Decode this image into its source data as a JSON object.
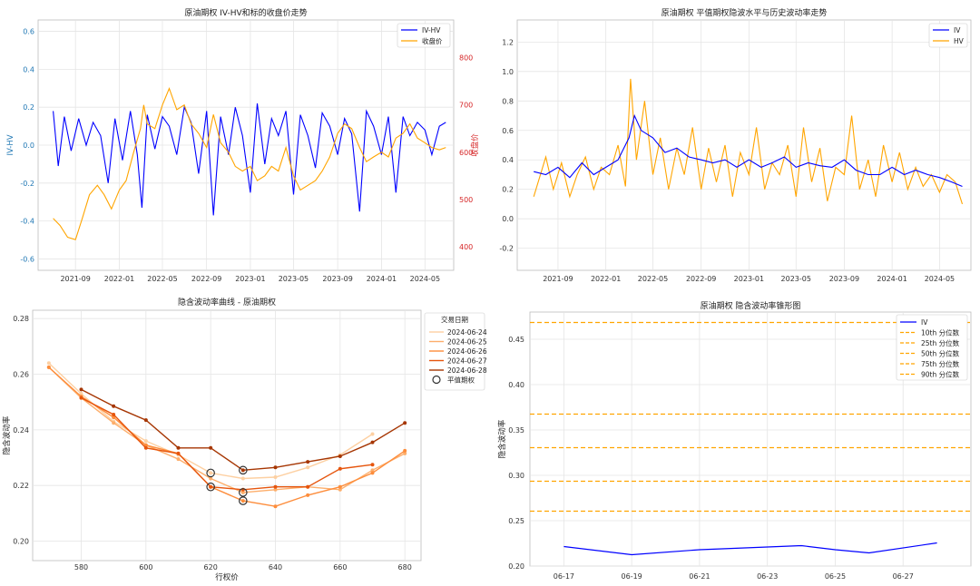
{
  "chart_data": [
    {
      "id": "iv_hv_close",
      "type": "line",
      "title": "原油期权 IV-HV和标的收盘价走势",
      "ylabel": "IV-HV",
      "y2label": "收盘价",
      "ylim": [
        -0.66,
        0.66
      ],
      "y2lim": [
        350,
        880
      ],
      "xlim": [
        "2021-05-20",
        "2024-07-20"
      ],
      "yticks": [
        "-0.6",
        "-0.4",
        "-0.2",
        "0.0",
        "0.2",
        "0.4",
        "0.6"
      ],
      "y2ticks": [
        "400",
        "500",
        "600",
        "700",
        "800"
      ],
      "xticks": [
        "2021-09",
        "2022-01",
        "2022-05",
        "2022-09",
        "2023-01",
        "2023-05",
        "2023-09",
        "2024-01",
        "2024-05"
      ],
      "grid": true,
      "legend_position": "top-right",
      "series": [
        {
          "name": "IV-HV",
          "axis": "left",
          "color": "#0000ff",
          "x": [
            "2021-07-01",
            "2021-07-15",
            "2021-08-01",
            "2021-08-20",
            "2021-09-10",
            "2021-10-01",
            "2021-10-20",
            "2021-11-10",
            "2021-12-01",
            "2021-12-20",
            "2022-01-10",
            "2022-02-01",
            "2022-02-20",
            "2022-03-05",
            "2022-03-20",
            "2022-04-10",
            "2022-05-01",
            "2022-05-20",
            "2022-06-10",
            "2022-07-01",
            "2022-07-20",
            "2022-08-10",
            "2022-09-01",
            "2022-09-20",
            "2022-10-10",
            "2022-11-01",
            "2022-11-20",
            "2022-12-10",
            "2023-01-01",
            "2023-01-20",
            "2023-02-10",
            "2023-03-01",
            "2023-03-20",
            "2023-04-10",
            "2023-05-01",
            "2023-05-20",
            "2023-06-10",
            "2023-07-01",
            "2023-07-20",
            "2023-08-10",
            "2023-09-01",
            "2023-09-20",
            "2023-10-10",
            "2023-11-01",
            "2023-11-20",
            "2023-12-10",
            "2024-01-01",
            "2024-01-20",
            "2024-02-10",
            "2024-03-01",
            "2024-03-20",
            "2024-04-10",
            "2024-05-01",
            "2024-05-20",
            "2024-06-10",
            "2024-06-28"
          ],
          "values": [
            0.18,
            -0.11,
            0.15,
            -0.03,
            0.14,
            0.0,
            0.12,
            0.05,
            -0.2,
            0.14,
            -0.08,
            0.18,
            -0.05,
            -0.33,
            0.16,
            -0.02,
            0.15,
            0.1,
            -0.05,
            0.2,
            0.12,
            -0.15,
            0.18,
            -0.37,
            0.15,
            -0.05,
            0.2,
            0.05,
            -0.25,
            0.22,
            -0.1,
            0.14,
            0.05,
            0.18,
            -0.26,
            0.16,
            0.05,
            -0.12,
            0.17,
            0.1,
            -0.05,
            0.14,
            0.06,
            -0.35,
            0.18,
            0.1,
            -0.05,
            0.15,
            -0.25,
            0.15,
            0.05,
            0.12,
            0.08,
            -0.05,
            0.1,
            0.12
          ]
        },
        {
          "name": "收盘价",
          "axis": "right",
          "color": "#ffa500",
          "x": [
            "2021-07-01",
            "2021-07-20",
            "2021-08-10",
            "2021-09-01",
            "2021-09-20",
            "2021-10-10",
            "2021-11-01",
            "2021-11-20",
            "2021-12-10",
            "2022-01-01",
            "2022-01-20",
            "2022-02-10",
            "2022-03-01",
            "2022-03-10",
            "2022-03-20",
            "2022-04-10",
            "2022-05-01",
            "2022-05-20",
            "2022-06-10",
            "2022-07-01",
            "2022-07-20",
            "2022-08-10",
            "2022-09-01",
            "2022-09-20",
            "2022-10-10",
            "2022-11-01",
            "2022-11-20",
            "2022-12-10",
            "2023-01-01",
            "2023-01-20",
            "2023-02-10",
            "2023-03-01",
            "2023-03-20",
            "2023-04-10",
            "2023-05-01",
            "2023-05-20",
            "2023-06-10",
            "2023-07-01",
            "2023-07-20",
            "2023-08-10",
            "2023-09-01",
            "2023-09-20",
            "2023-10-10",
            "2023-11-01",
            "2023-11-20",
            "2023-12-10",
            "2024-01-01",
            "2024-01-20",
            "2024-02-10",
            "2024-03-01",
            "2024-03-20",
            "2024-04-10",
            "2024-05-01",
            "2024-05-20",
            "2024-06-10",
            "2024-06-28"
          ],
          "values": [
            460,
            445,
            420,
            415,
            460,
            510,
            530,
            510,
            480,
            520,
            540,
            600,
            650,
            700,
            660,
            650,
            700,
            735,
            690,
            700,
            660,
            640,
            610,
            680,
            620,
            600,
            570,
            560,
            570,
            540,
            550,
            570,
            560,
            610,
            550,
            520,
            530,
            540,
            560,
            590,
            640,
            660,
            650,
            610,
            580,
            590,
            600,
            590,
            630,
            640,
            660,
            630,
            620,
            610,
            605,
            610
          ]
        }
      ]
    },
    {
      "id": "atm_iv_hv",
      "type": "line",
      "title": "原油期权 平值期权隐波水平与历史波动率走势",
      "ylim": [
        -0.35,
        1.35
      ],
      "xlim": [
        "2021-05-20",
        "2024-07-20"
      ],
      "yticks": [
        "-0.2",
        "0.0",
        "0.2",
        "0.4",
        "0.6",
        "0.8",
        "1.0",
        "1.2"
      ],
      "xticks": [
        "2021-09",
        "2022-01",
        "2022-05",
        "2022-09",
        "2023-01",
        "2023-05",
        "2023-09",
        "2024-01",
        "2024-05"
      ],
      "grid": true,
      "legend_position": "top-right",
      "series": [
        {
          "name": "IV",
          "color": "#0000ff",
          "x": [
            "2021-07-01",
            "2021-08-01",
            "2021-09-01",
            "2021-10-01",
            "2021-11-01",
            "2021-12-01",
            "2022-01-01",
            "2022-02-01",
            "2022-03-01",
            "2022-03-15",
            "2022-04-01",
            "2022-05-01",
            "2022-06-01",
            "2022-07-01",
            "2022-08-01",
            "2022-09-01",
            "2022-10-01",
            "2022-11-01",
            "2022-12-01",
            "2023-01-01",
            "2023-02-01",
            "2023-03-01",
            "2023-04-01",
            "2023-05-01",
            "2023-06-01",
            "2023-07-01",
            "2023-08-01",
            "2023-09-01",
            "2023-10-01",
            "2023-11-01",
            "2023-12-01",
            "2024-01-01",
            "2024-02-01",
            "2024-03-01",
            "2024-04-01",
            "2024-05-01",
            "2024-06-01",
            "2024-06-28"
          ],
          "values": [
            0.32,
            0.3,
            0.35,
            0.28,
            0.38,
            0.3,
            0.35,
            0.4,
            0.55,
            0.7,
            0.6,
            0.55,
            0.45,
            0.48,
            0.42,
            0.4,
            0.38,
            0.4,
            0.35,
            0.4,
            0.35,
            0.38,
            0.42,
            0.35,
            0.38,
            0.36,
            0.35,
            0.4,
            0.33,
            0.3,
            0.3,
            0.35,
            0.3,
            0.33,
            0.3,
            0.28,
            0.25,
            0.22
          ]
        },
        {
          "name": "HV",
          "color": "#ffa500",
          "x": [
            "2021-07-01",
            "2021-08-01",
            "2021-08-20",
            "2021-09-10",
            "2021-10-01",
            "2021-10-20",
            "2021-11-10",
            "2021-12-01",
            "2021-12-20",
            "2022-01-10",
            "2022-02-01",
            "2022-02-20",
            "2022-03-05",
            "2022-03-20",
            "2022-04-10",
            "2022-05-01",
            "2022-05-20",
            "2022-06-10",
            "2022-07-01",
            "2022-07-20",
            "2022-08-10",
            "2022-09-01",
            "2022-09-20",
            "2022-10-10",
            "2022-11-01",
            "2022-11-20",
            "2022-12-10",
            "2023-01-01",
            "2023-01-20",
            "2023-02-10",
            "2023-03-01",
            "2023-03-20",
            "2023-04-10",
            "2023-05-01",
            "2023-05-20",
            "2023-06-10",
            "2023-07-01",
            "2023-07-20",
            "2023-08-10",
            "2023-09-01",
            "2023-09-20",
            "2023-10-10",
            "2023-11-01",
            "2023-11-20",
            "2023-12-10",
            "2024-01-01",
            "2024-01-20",
            "2024-02-10",
            "2024-03-01",
            "2024-03-20",
            "2024-04-10",
            "2024-05-01",
            "2024-05-20",
            "2024-06-10",
            "2024-06-28"
          ],
          "values": [
            0.15,
            0.42,
            0.2,
            0.38,
            0.15,
            0.3,
            0.42,
            0.2,
            0.35,
            0.3,
            0.5,
            0.22,
            0.95,
            0.4,
            0.8,
            0.3,
            0.55,
            0.2,
            0.48,
            0.3,
            0.62,
            0.2,
            0.48,
            0.25,
            0.5,
            0.15,
            0.45,
            0.3,
            0.62,
            0.2,
            0.38,
            0.3,
            0.5,
            0.15,
            0.62,
            0.25,
            0.48,
            0.12,
            0.35,
            0.3,
            0.7,
            0.2,
            0.4,
            0.15,
            0.5,
            0.25,
            0.45,
            0.2,
            0.35,
            0.22,
            0.3,
            0.18,
            0.3,
            0.25,
            0.1
          ]
        }
      ]
    },
    {
      "id": "iv_smile",
      "type": "line",
      "title": "隐含波动率曲线 - 原油期权",
      "xlabel": "行权价",
      "ylabel": "隐含波动率",
      "xlim": [
        565,
        685
      ],
      "ylim": [
        0.193,
        0.283
      ],
      "xticks": [
        "580",
        "600",
        "620",
        "640",
        "660",
        "680"
      ],
      "yticks": [
        "0.20",
        "0.22",
        "0.24",
        "0.26",
        "0.28"
      ],
      "grid": true,
      "legend_title": "交易日期",
      "legend_position": "top-right",
      "atm_label": "平值期权",
      "strikes": [
        570,
        580,
        590,
        600,
        610,
        620,
        630,
        640,
        650,
        660,
        670,
        680
      ],
      "series": [
        {
          "name": "2024-06-24",
          "color": "#fdd0a2",
          "values": [
            0.264,
            0.253,
            0.243,
            0.236,
            0.231,
            0.2245,
            0.2225,
            0.223,
            0.2265,
            0.231,
            0.2385,
            null
          ]
        },
        {
          "name": "2024-06-25",
          "color": "#fdae6b",
          "values": [
            0.2625,
            0.2515,
            0.2425,
            0.2345,
            0.2295,
            0.2225,
            0.2175,
            0.2185,
            0.2195,
            0.2185,
            0.2255,
            0.2315
          ]
        },
        {
          "name": "2024-06-26",
          "color": "#fd8d3c",
          "values": [
            0.2625,
            0.252,
            0.2445,
            0.2345,
            0.2315,
            0.2195,
            0.2145,
            0.2125,
            0.2165,
            0.2195,
            0.2245,
            0.2325
          ]
        },
        {
          "name": "2024-06-27",
          "color": "#e6550d",
          "values": [
            null,
            0.2515,
            0.2455,
            0.2335,
            0.2315,
            0.2195,
            0.2185,
            0.2195,
            0.2195,
            0.226,
            0.2275,
            null
          ]
        },
        {
          "name": "2024-06-28",
          "color": "#a63603",
          "values": [
            null,
            0.2545,
            0.2485,
            0.2435,
            0.2335,
            0.2335,
            0.2255,
            0.2265,
            0.2285,
            0.2305,
            0.2355,
            0.2425
          ]
        }
      ],
      "atm_points": [
        {
          "series": "2024-06-24",
          "strike": 620
        },
        {
          "series": "2024-06-25",
          "strike": 630
        },
        {
          "series": "2024-06-26",
          "strike": 630
        },
        {
          "series": "2024-06-27",
          "strike": 620
        },
        {
          "series": "2024-06-28",
          "strike": 630
        }
      ]
    },
    {
      "id": "vol_cone",
      "type": "line",
      "title": "原油期权 隐含波动率锥形图",
      "ylabel": "隐含波动率",
      "ylim": [
        0.2,
        0.48
      ],
      "xlim": [
        "2024-06-16",
        "2024-06-29"
      ],
      "yticks": [
        "0.20",
        "0.25",
        "0.30",
        "0.35",
        "0.40",
        "0.45"
      ],
      "xticks": [
        "06-17",
        "06-19",
        "06-21",
        "06-23",
        "06-25",
        "06-27"
      ],
      "xtick_dates": [
        "2024-06-17",
        "2024-06-19",
        "2024-06-21",
        "2024-06-23",
        "2024-06-25",
        "2024-06-27"
      ],
      "grid": true,
      "legend_position": "top-right",
      "series": [
        {
          "name": "IV",
          "color": "#0000ff",
          "x": [
            "2024-06-17",
            "2024-06-19",
            "2024-06-21",
            "2024-06-24",
            "2024-06-25",
            "2024-06-26",
            "2024-06-28"
          ],
          "values": [
            0.2215,
            0.2125,
            0.218,
            0.2225,
            0.218,
            0.2145,
            0.2255
          ]
        }
      ],
      "percentiles": [
        {
          "name": "10th 分位数",
          "value": 0.2605,
          "color": "#ffa500"
        },
        {
          "name": "25th 分位数",
          "value": 0.2935,
          "color": "#ffa500"
        },
        {
          "name": "50th 分位数",
          "value": 0.3305,
          "color": "#ffa500"
        },
        {
          "name": "75th 分位数",
          "value": 0.3675,
          "color": "#ffa500"
        },
        {
          "name": "90th 分位数",
          "value": 0.4685,
          "color": "#ffa500"
        }
      ]
    }
  ]
}
